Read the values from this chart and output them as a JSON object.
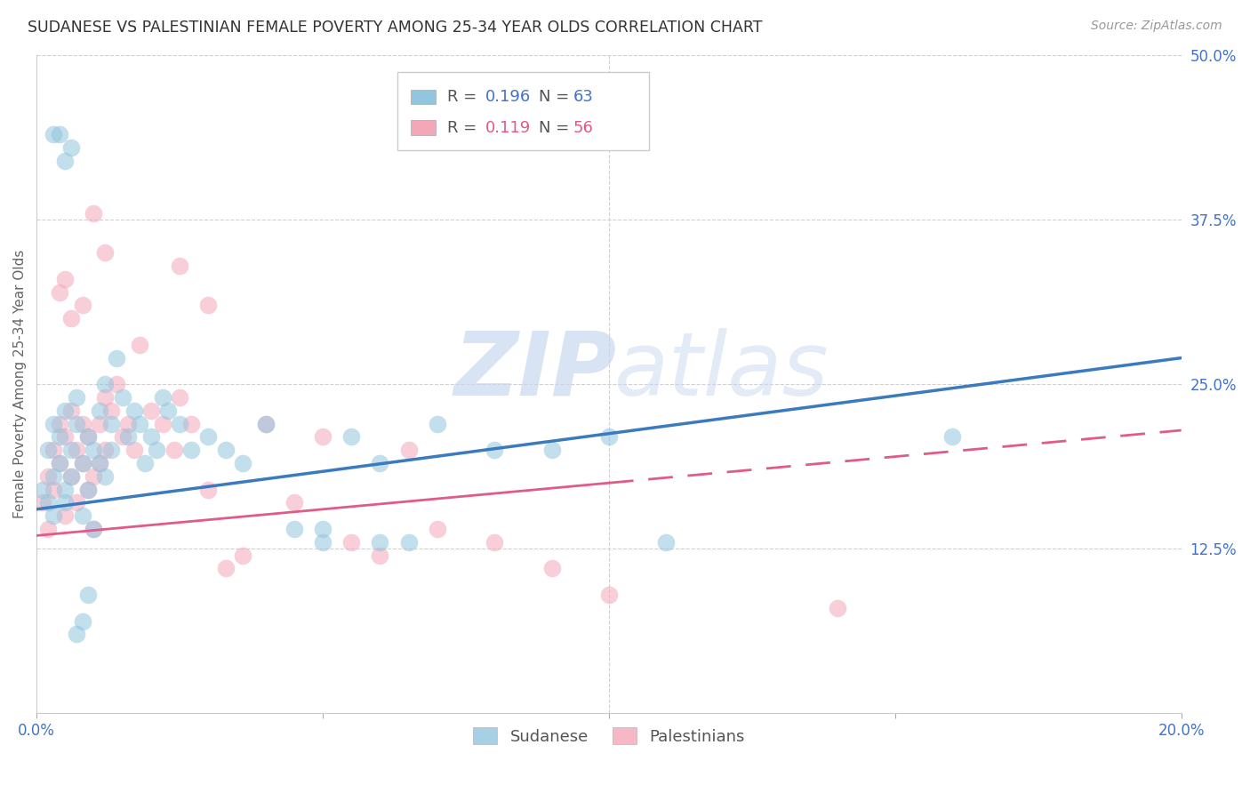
{
  "title": "SUDANESE VS PALESTINIAN FEMALE POVERTY AMONG 25-34 YEAR OLDS CORRELATION CHART",
  "source": "Source: ZipAtlas.com",
  "ylabel": "Female Poverty Among 25-34 Year Olds",
  "xlim": [
    0.0,
    0.2
  ],
  "ylim": [
    0.0,
    0.5
  ],
  "xtick_positions": [
    0.0,
    0.05,
    0.1,
    0.15,
    0.2
  ],
  "xtick_labels": [
    "0.0%",
    "",
    "",
    "",
    "20.0%"
  ],
  "ytick_right_positions": [
    0.125,
    0.25,
    0.375,
    0.5
  ],
  "ytick_right_labels": [
    "12.5%",
    "25.0%",
    "37.5%",
    "50.0%"
  ],
  "blue_color": "#92c5de",
  "pink_color": "#f4a7b9",
  "regression_blue_color": "#3a7abf",
  "regression_pink_color": "#e05a8a",
  "grid_color": "#d0d0d0",
  "background_color": "#ffffff",
  "title_fontsize": 12.5,
  "axis_label_fontsize": 11,
  "tick_fontsize": 12,
  "source_fontsize": 10,
  "legend_r1_black": "R = ",
  "legend_r1_blue": "0.196",
  "legend_n1_black": "  N = ",
  "legend_n1_blue": "63",
  "legend_r2_black": "R = ",
  "legend_r2_pink": "0.119",
  "legend_n2_black": "  N = ",
  "legend_n2_pink": "56",
  "watermark": "ZIPatlas",
  "sudanese_x": [
    0.001,
    0.002,
    0.002,
    0.003,
    0.003,
    0.003,
    0.004,
    0.004,
    0.005,
    0.005,
    0.005,
    0.006,
    0.006,
    0.007,
    0.007,
    0.008,
    0.008,
    0.009,
    0.009,
    0.01,
    0.01,
    0.011,
    0.011,
    0.012,
    0.012,
    0.013,
    0.013,
    0.014,
    0.015,
    0.016,
    0.017,
    0.018,
    0.019,
    0.02,
    0.021,
    0.022,
    0.023,
    0.025,
    0.027,
    0.03,
    0.033,
    0.036,
    0.04,
    0.045,
    0.05,
    0.055,
    0.06,
    0.065,
    0.07,
    0.08,
    0.09,
    0.1,
    0.11,
    0.05,
    0.06,
    0.16,
    0.003,
    0.004,
    0.005,
    0.006,
    0.007,
    0.008,
    0.009
  ],
  "sudanese_y": [
    0.17,
    0.2,
    0.16,
    0.18,
    0.22,
    0.15,
    0.19,
    0.21,
    0.17,
    0.23,
    0.16,
    0.2,
    0.18,
    0.24,
    0.22,
    0.19,
    0.15,
    0.21,
    0.17,
    0.2,
    0.14,
    0.23,
    0.19,
    0.25,
    0.18,
    0.22,
    0.2,
    0.27,
    0.24,
    0.21,
    0.23,
    0.22,
    0.19,
    0.21,
    0.2,
    0.24,
    0.23,
    0.22,
    0.2,
    0.21,
    0.2,
    0.19,
    0.22,
    0.14,
    0.13,
    0.21,
    0.19,
    0.13,
    0.22,
    0.2,
    0.2,
    0.21,
    0.13,
    0.14,
    0.13,
    0.21,
    0.44,
    0.44,
    0.42,
    0.43,
    0.06,
    0.07,
    0.09
  ],
  "palestinian_x": [
    0.001,
    0.002,
    0.002,
    0.003,
    0.003,
    0.004,
    0.004,
    0.005,
    0.005,
    0.006,
    0.006,
    0.007,
    0.007,
    0.008,
    0.008,
    0.009,
    0.009,
    0.01,
    0.01,
    0.011,
    0.011,
    0.012,
    0.012,
    0.013,
    0.014,
    0.015,
    0.016,
    0.017,
    0.018,
    0.02,
    0.022,
    0.024,
    0.025,
    0.027,
    0.03,
    0.033,
    0.036,
    0.04,
    0.045,
    0.05,
    0.055,
    0.06,
    0.065,
    0.07,
    0.08,
    0.09,
    0.1,
    0.004,
    0.005,
    0.006,
    0.008,
    0.01,
    0.012,
    0.14,
    0.025,
    0.03
  ],
  "palestinian_y": [
    0.16,
    0.18,
    0.14,
    0.2,
    0.17,
    0.19,
    0.22,
    0.15,
    0.21,
    0.18,
    0.23,
    0.2,
    0.16,
    0.22,
    0.19,
    0.17,
    0.21,
    0.18,
    0.14,
    0.22,
    0.19,
    0.24,
    0.2,
    0.23,
    0.25,
    0.21,
    0.22,
    0.2,
    0.28,
    0.23,
    0.22,
    0.2,
    0.24,
    0.22,
    0.17,
    0.11,
    0.12,
    0.22,
    0.16,
    0.21,
    0.13,
    0.12,
    0.2,
    0.14,
    0.13,
    0.11,
    0.09,
    0.32,
    0.33,
    0.3,
    0.31,
    0.38,
    0.35,
    0.08,
    0.34,
    0.31
  ]
}
